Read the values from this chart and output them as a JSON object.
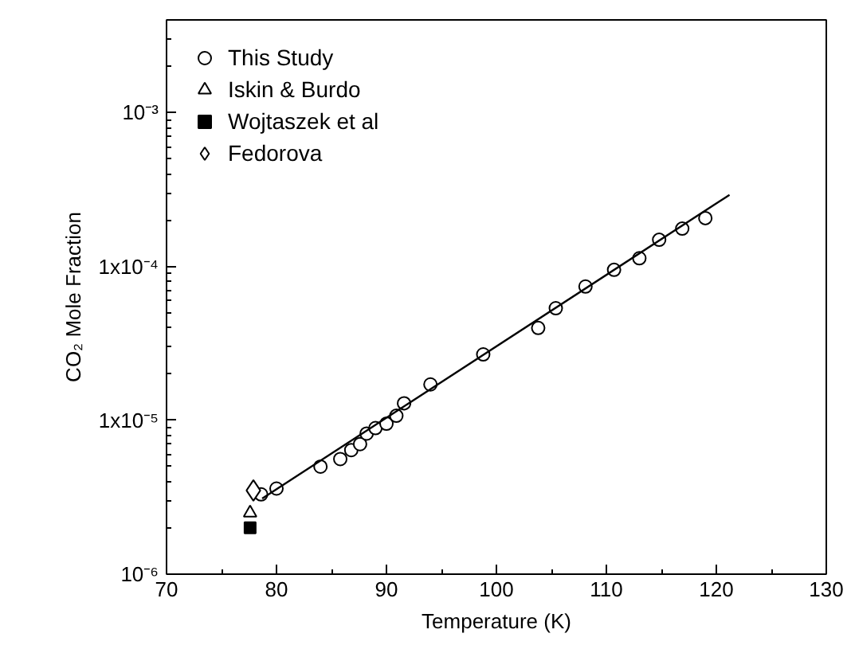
{
  "chart_data": {
    "type": "scatter",
    "xlabel": "Temperature (K)",
    "ylabel": "CO₂ Mole Fraction",
    "log": "y",
    "grid": false,
    "legend": "top left",
    "xlim": [
      70,
      130
    ],
    "xticks": [
      70,
      80,
      90,
      100,
      110,
      120,
      130
    ],
    "ylim": [
      1e-06,
      0.004
    ],
    "yticks": [
      {
        "value": 1e-06,
        "label": "10⁻⁶"
      },
      {
        "value": 1e-05,
        "label": "1x10⁻⁵"
      },
      {
        "value": 0.0001,
        "label": "1x10⁻⁴"
      },
      {
        "value": 0.001,
        "label": "10⁻³"
      }
    ],
    "series": [
      {
        "name": "This Study",
        "color": "#000000",
        "marker": "circle",
        "x": [
          78.6,
          80.0,
          84.0,
          85.8,
          86.8,
          87.6,
          88.2,
          89.0,
          90.0,
          90.9,
          91.6,
          94.0,
          98.8,
          103.8,
          105.4,
          108.1,
          110.7,
          113.0,
          114.8,
          116.9,
          119.0
        ],
        "values": [
          3.3e-06,
          3.6e-06,
          5e-06,
          5.6e-06,
          6.4e-06,
          7e-06,
          8.2e-06,
          8.9e-06,
          9.5e-06,
          1.07e-05,
          1.29e-05,
          1.71e-05,
          2.68e-05,
          3.98e-05,
          5.35e-05,
          7.4e-05,
          9.5e-05,
          0.000113,
          0.000149,
          0.000176,
          0.000206
        ]
      },
      {
        "name": "Iskin & Burdo",
        "color": "#000000",
        "marker": "triangle",
        "x": [
          77.6
        ],
        "values": [
          2.5e-06
        ]
      },
      {
        "name": "Wojtaszek et al",
        "color": "#000000",
        "marker": "square",
        "x": [
          77.6
        ],
        "values": [
          2e-06
        ]
      },
      {
        "name": "Fedorova",
        "color": "#000000",
        "marker": "diamond",
        "x": [
          77.9
        ],
        "values": [
          3.5e-06
        ]
      },
      {
        "type": "line",
        "color": "#000000",
        "line_style": "solid",
        "x": [
          78.7,
          121.2
        ],
        "values": [
          3.1e-06,
          0.000292
        ]
      }
    ]
  }
}
